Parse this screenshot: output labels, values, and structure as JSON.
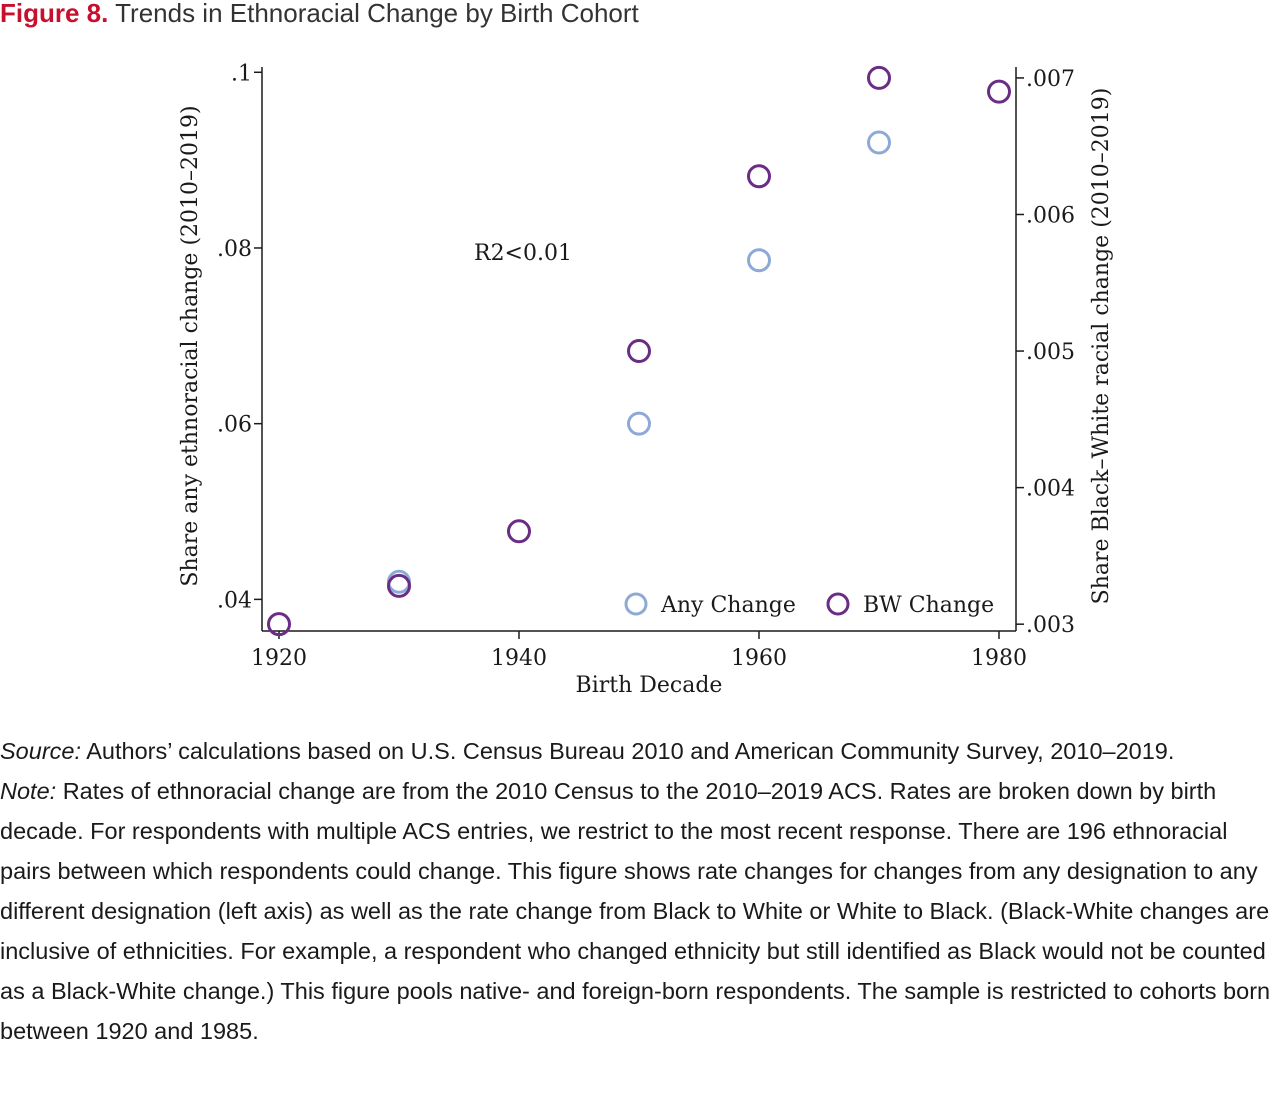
{
  "figure": {
    "number": "Figure 8.",
    "title": "Trends in Ethnoracial Change by Birth Cohort"
  },
  "chart_data": {
    "type": "scatter",
    "title": "",
    "xlabel": "Birth Decade",
    "ylabel_left": "Share any ethnoracial change (2010–2019)",
    "ylabel_right": "Share Black–White racial change (2010–2019)",
    "x_ticks": [
      1920,
      1940,
      1960,
      1980
    ],
    "x_tick_labels": [
      "1920",
      "1940",
      "1960",
      "1980"
    ],
    "xlim": [
      1920,
      1980
    ],
    "ylim_left": [
      0.0364,
      0.1006
    ],
    "ylim_right": [
      0.00295,
      0.00708
    ],
    "y_ticks_left": [
      0.04,
      0.06,
      0.08,
      0.1
    ],
    "y_tick_labels_left": [
      ".04",
      ".06",
      ".08",
      ".1"
    ],
    "y_ticks_right": [
      0.003,
      0.004,
      0.005,
      0.006,
      0.007
    ],
    "y_tick_labels_right": [
      ".003",
      ".004",
      ".005",
      ".006",
      ".007"
    ],
    "annotation": "R2<0.01",
    "grid": false,
    "legend_position": "bottom-right",
    "series": [
      {
        "name": "Any Change",
        "axis": "left",
        "color": "#8fa9d6",
        "x": [
          1930,
          1950,
          1960,
          1970
        ],
        "y": [
          0.042,
          0.06,
          0.0786,
          0.092
        ]
      },
      {
        "name": "BW Change",
        "axis": "right",
        "color": "#6a2c84",
        "x": [
          1920,
          1930,
          1940,
          1950,
          1960,
          1970,
          1980
        ],
        "y": [
          0.003,
          0.00328,
          0.00368,
          0.005,
          0.00628,
          0.007,
          0.0069
        ]
      }
    ]
  },
  "notes": {
    "source_lead": "Source:",
    "source_text": " Authors’ calculations based on U.S. Census Bureau 2010 and American Community Survey, 2010–2019.",
    "note_lead": "Note:",
    "note_text": " Rates of ethnoracial change are from the 2010 Census to the 2010–2019 ACS. Rates are broken down by birth decade. For respondents with multiple ACS entries, we restrict to the most recent response. There are 196 ethnoracial pairs between which respondents could change. This figure shows rate changes for changes from any designation to any different designation (left axis) as well as the rate change from Black to White or White to Black. (Black-White changes are inclusive of ethnicities. For example, a respondent who changed ethnicity but still identified as Black would not be counted as a Black-White change.) This figure pools native- and foreign-born respondents. The sample is restricted to cohorts born between 1920 and 1985."
  }
}
